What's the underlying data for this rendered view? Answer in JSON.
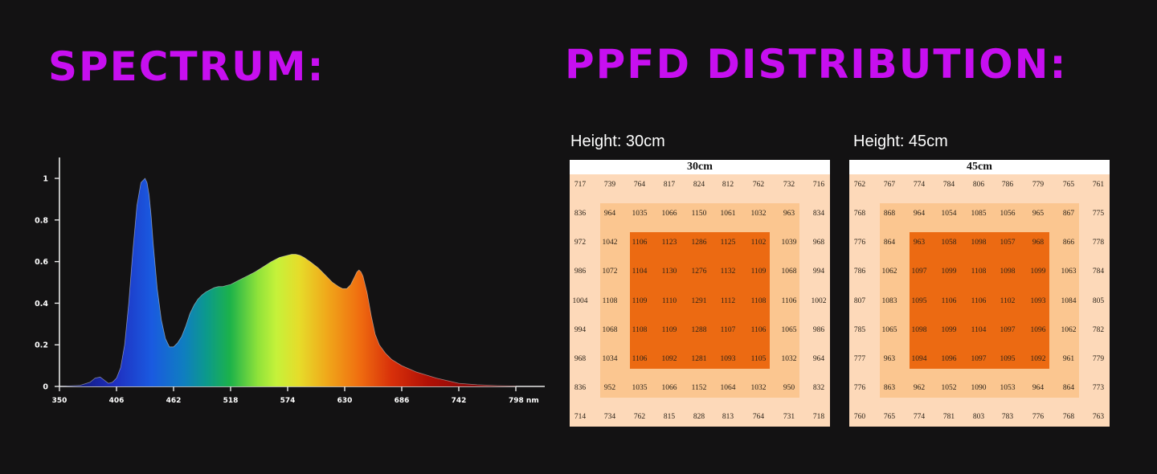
{
  "headings": {
    "spectrum": "SPECTRUM:",
    "ppfd": "PPFD DISTRIBUTION:"
  },
  "chart_data": [
    {
      "type": "area",
      "title": "SPECTRUM:",
      "xlabel": "nm",
      "ylabel": "",
      "x_ticks": [
        "350",
        "406",
        "462",
        "518",
        "574",
        "630",
        "686",
        "742",
        "798 nm"
      ],
      "y_ticks": [
        "0",
        "0.2",
        "0.4",
        "0.6",
        "0.8",
        "1"
      ],
      "xlim": [
        350,
        798
      ],
      "ylim": [
        0,
        1
      ],
      "grid": false,
      "fill": "wavelength-colored gradient",
      "series": [
        {
          "x": [
            350,
            370,
            380,
            385,
            390,
            394,
            398,
            402,
            406,
            410,
            414,
            418,
            422,
            426,
            430,
            434,
            436,
            438,
            440,
            442,
            446,
            450,
            454,
            458,
            462,
            466,
            470,
            474,
            478,
            482,
            486,
            490,
            494,
            498,
            502,
            506,
            510,
            514,
            518,
            526,
            534,
            542,
            550,
            558,
            566,
            574,
            578,
            582,
            586,
            590,
            596,
            604,
            612,
            618,
            624,
            628,
            632,
            636,
            640,
            642,
            644,
            646,
            648,
            652,
            656,
            660,
            664,
            670,
            676,
            686,
            700,
            720,
            742,
            760,
            780,
            798
          ],
          "y": [
            0,
            0.005,
            0.02,
            0.04,
            0.045,
            0.03,
            0.015,
            0.02,
            0.04,
            0.09,
            0.2,
            0.4,
            0.65,
            0.87,
            0.98,
            1.0,
            0.98,
            0.92,
            0.82,
            0.69,
            0.47,
            0.32,
            0.23,
            0.19,
            0.19,
            0.21,
            0.24,
            0.29,
            0.35,
            0.39,
            0.42,
            0.44,
            0.455,
            0.465,
            0.475,
            0.48,
            0.48,
            0.485,
            0.49,
            0.51,
            0.53,
            0.55,
            0.575,
            0.6,
            0.62,
            0.63,
            0.635,
            0.635,
            0.63,
            0.62,
            0.6,
            0.57,
            0.53,
            0.5,
            0.48,
            0.47,
            0.47,
            0.49,
            0.53,
            0.55,
            0.56,
            0.55,
            0.53,
            0.45,
            0.34,
            0.25,
            0.2,
            0.16,
            0.13,
            0.1,
            0.07,
            0.04,
            0.015,
            0.008,
            0.004,
            0.002
          ]
        }
      ]
    },
    {
      "type": "heatmap",
      "title": "30cm",
      "label": "Height: 30cm",
      "rows": [
        [
          "717",
          "739",
          "764",
          "817",
          "824",
          "812",
          "762",
          "732",
          "716"
        ],
        [
          "836",
          "964",
          "1035",
          "1066",
          "1150",
          "1061",
          "1032",
          "963",
          "834"
        ],
        [
          "972",
          "1042",
          "1106",
          "1123",
          "1286",
          "1125",
          "1102",
          "1039",
          "968"
        ],
        [
          "986",
          "1072",
          "1104",
          "1130",
          "1276",
          "1132",
          "1109",
          "1068",
          "994"
        ],
        [
          "1004",
          "1108",
          "1109",
          "1110",
          "1291",
          "1112",
          "1108",
          "1106",
          "1002"
        ],
        [
          "994",
          "1068",
          "1108",
          "1109",
          "1288",
          "1107",
          "1106",
          "1065",
          "986"
        ],
        [
          "968",
          "1034",
          "1106",
          "1092",
          "1281",
          "1093",
          "1105",
          "1032",
          "964"
        ],
        [
          "836",
          "952",
          "1035",
          "1066",
          "1152",
          "1064",
          "1032",
          "950",
          "832"
        ],
        [
          "714",
          "734",
          "762",
          "815",
          "828",
          "813",
          "764",
          "731",
          "718"
        ]
      ]
    },
    {
      "type": "heatmap",
      "title": "45cm",
      "label": "Height: 45cm",
      "rows": [
        [
          "762",
          "767",
          "774",
          "784",
          "806",
          "786",
          "779",
          "765",
          "761"
        ],
        [
          "768",
          "868",
          "964",
          "1054",
          "1085",
          "1056",
          "965",
          "867",
          "775"
        ],
        [
          "776",
          "864",
          "963",
          "1058",
          "1098",
          "1057",
          "968",
          "866",
          "778"
        ],
        [
          "786",
          "1062",
          "1097",
          "1099",
          "1108",
          "1098",
          "1099",
          "1063",
          "784"
        ],
        [
          "807",
          "1083",
          "1095",
          "1106",
          "1106",
          "1102",
          "1093",
          "1084",
          "805"
        ],
        [
          "785",
          "1065",
          "1098",
          "1099",
          "1104",
          "1097",
          "1096",
          "1062",
          "782"
        ],
        [
          "777",
          "963",
          "1094",
          "1096",
          "1097",
          "1095",
          "1092",
          "961",
          "779"
        ],
        [
          "776",
          "863",
          "962",
          "1052",
          "1090",
          "1053",
          "964",
          "864",
          "773"
        ],
        [
          "760",
          "765",
          "774",
          "781",
          "803",
          "783",
          "776",
          "768",
          "763"
        ]
      ]
    }
  ]
}
